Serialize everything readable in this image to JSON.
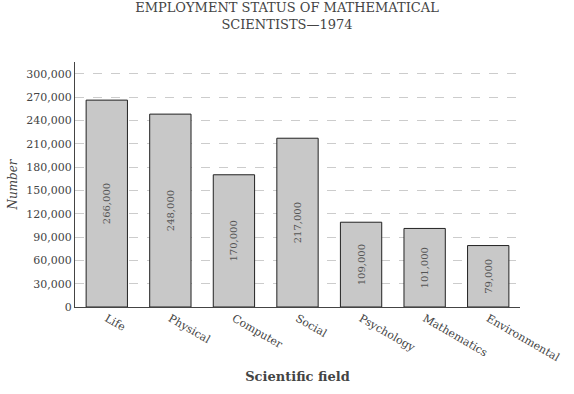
{
  "chart_data": {
    "type": "bar",
    "title": "EMPLOYMENT STATUS OF MATHEMATICAL\nSCIENTISTS—1974",
    "xlabel": "Scientific field",
    "ylabel": "Number",
    "categories": [
      "Life",
      "Physical",
      "Computer",
      "Social",
      "Psychology",
      "Mathematics",
      "Environmental"
    ],
    "values": [
      266000,
      248000,
      170000,
      217000,
      109000,
      101000,
      79000
    ],
    "value_labels": [
      "266,000",
      "248,000",
      "170,000",
      "217,000",
      "109,000",
      "101,000",
      "79,000"
    ],
    "data_labels": true,
    "color": "#c8c8c8",
    "ylim": [
      0,
      315000
    ],
    "yticks": [
      0,
      {
        "value": 30000,
        "label": "30,000"
      },
      {
        "value": 60000,
        "label": "60,000"
      },
      {
        "value": 90000,
        "label": "90,000"
      },
      {
        "value": 120000,
        "label": "120,000"
      },
      {
        "value": 150000,
        "label": "150,000"
      },
      {
        "value": 180000,
        "label": "180,000"
      },
      {
        "value": 210000,
        "label": "210,000"
      },
      {
        "value": 240000,
        "label": "240,000"
      },
      {
        "value": 270000,
        "label": "270,000"
      },
      {
        "value": 300000,
        "label": "300,000"
      }
    ],
    "grid": true
  }
}
